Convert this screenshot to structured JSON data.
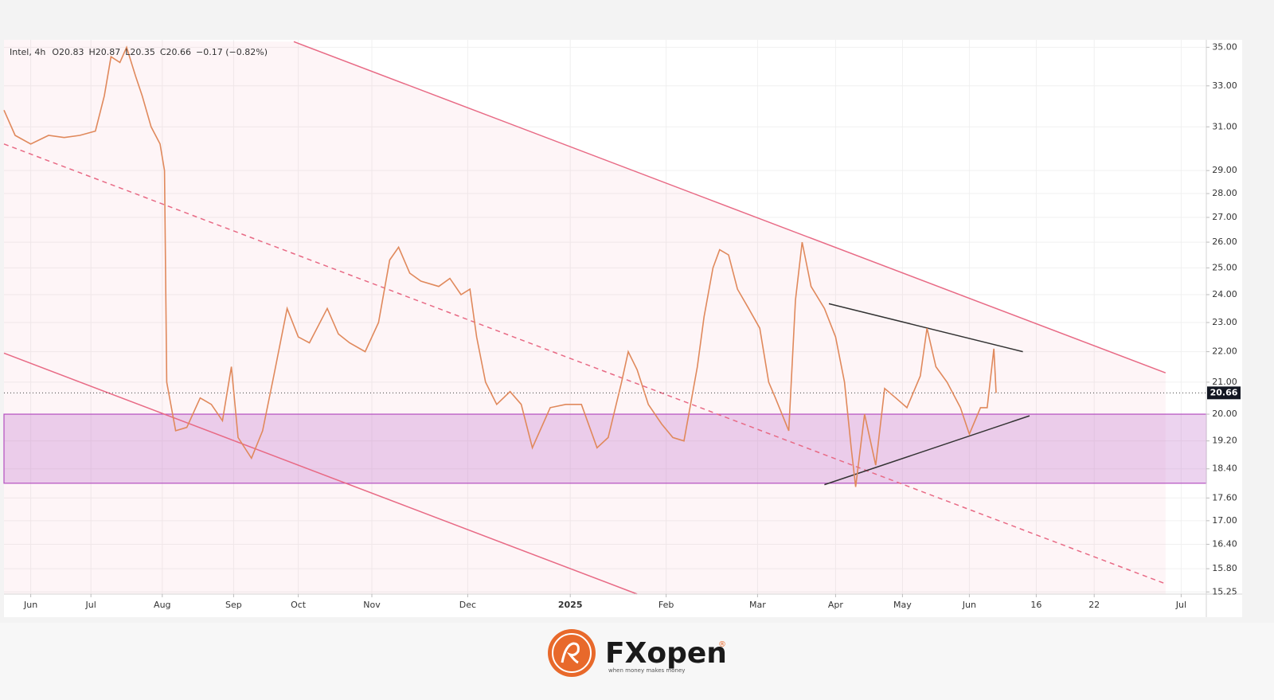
{
  "chart_data": {
    "type": "line",
    "symbol": "Intel, 4h",
    "legend_items": [
      "O20.83",
      "H20.87",
      "L20.35",
      "C20.66",
      "−0.17 (−0.82%)"
    ],
    "log_scale": true,
    "grid": true,
    "xlim": [
      0,
      540
    ],
    "xticks": [
      {
        "value": 12,
        "label": "Jun"
      },
      {
        "value": 39,
        "label": "Jul"
      },
      {
        "value": 71,
        "label": "Aug"
      },
      {
        "value": 103,
        "label": "Sep"
      },
      {
        "value": 132,
        "label": "Oct"
      },
      {
        "value": 165,
        "label": "Nov"
      },
      {
        "value": 208,
        "label": "Dec"
      },
      {
        "value": 254,
        "label": "2025"
      },
      {
        "value": 297,
        "label": "Feb"
      },
      {
        "value": 338,
        "label": "Mar"
      },
      {
        "value": 373,
        "label": "Apr"
      },
      {
        "value": 403,
        "label": "May"
      },
      {
        "value": 433,
        "label": "Jun"
      },
      {
        "value": 463,
        "label": "16"
      },
      {
        "value": 489,
        "label": "22"
      },
      {
        "value": 528,
        "label": "Jul"
      }
    ],
    "ylim": [
      15.2,
      35.4
    ],
    "yticks": [
      {
        "value": 35,
        "label": "35.00"
      },
      {
        "value": 33,
        "label": "33.00"
      },
      {
        "value": 31,
        "label": "31.00"
      },
      {
        "value": 29,
        "label": "29.00"
      },
      {
        "value": 28,
        "label": "28.00"
      },
      {
        "value": 27,
        "label": "27.00"
      },
      {
        "value": 26,
        "label": "26.00"
      },
      {
        "value": 25,
        "label": "25.00"
      },
      {
        "value": 24,
        "label": "24.00"
      },
      {
        "value": 23,
        "label": "23.00"
      },
      {
        "value": 22,
        "label": "22.00"
      },
      {
        "value": 21,
        "label": "21.00"
      },
      {
        "value": 20,
        "label": "20.00"
      },
      {
        "value": 19.2,
        "label": "19.20"
      },
      {
        "value": 18.4,
        "label": "18.40"
      },
      {
        "value": 17.6,
        "label": "17.60"
      },
      {
        "value": 17,
        "label": "17.00"
      },
      {
        "value": 16.4,
        "label": "16.40"
      },
      {
        "value": 15.8,
        "label": "15.80"
      },
      {
        "value": 15.25,
        "label": "15.25"
      }
    ],
    "series": [
      {
        "name": "Intel",
        "color": "#e0895c",
        "x": [
          0,
          5,
          12,
          20,
          27,
          34,
          41,
          45,
          48,
          52,
          55,
          59,
          62,
          66,
          70,
          72,
          73,
          77,
          82,
          88,
          93,
          98,
          102,
          105,
          111,
          116,
          121,
          127,
          132,
          137,
          145,
          150,
          155,
          162,
          168,
          173,
          177,
          182,
          187,
          195,
          200,
          205,
          209,
          212,
          216,
          221,
          227,
          232,
          237,
          245,
          252,
          259,
          266,
          271,
          277,
          280,
          284,
          289,
          295,
          300,
          305,
          311,
          314,
          318,
          321,
          325,
          329,
          334,
          339,
          343,
          346,
          352,
          355,
          358,
          362,
          368,
          373,
          377,
          380,
          382,
          386,
          391,
          395,
          400,
          405,
          411,
          414,
          418,
          423,
          429,
          433,
          438,
          441,
          444,
          445
        ],
        "values": [
          31.8,
          30.6,
          30.2,
          30.6,
          30.5,
          30.6,
          30.8,
          32.5,
          34.5,
          34.2,
          35.0,
          33.5,
          32.5,
          31.0,
          30.2,
          29.0,
          21.0,
          19.5,
          19.6,
          20.5,
          20.3,
          19.8,
          21.5,
          19.3,
          18.7,
          19.5,
          21.2,
          23.5,
          22.5,
          22.3,
          23.5,
          22.6,
          22.3,
          22.0,
          23.0,
          25.3,
          25.8,
          24.8,
          24.5,
          24.3,
          24.6,
          24.0,
          24.2,
          22.5,
          21.0,
          20.3,
          20.7,
          20.3,
          19.0,
          20.2,
          20.3,
          20.3,
          19.0,
          19.3,
          21.0,
          22.0,
          21.4,
          20.3,
          19.7,
          19.3,
          19.2,
          21.5,
          23.2,
          25.0,
          25.7,
          25.5,
          24.2,
          23.5,
          22.8,
          21.0,
          20.5,
          19.5,
          23.8,
          26.0,
          24.3,
          23.5,
          22.5,
          21.0,
          19.0,
          17.9,
          20.0,
          18.5,
          20.8,
          20.5,
          20.2,
          21.2,
          22.8,
          21.5,
          21.0,
          20.2,
          19.4,
          20.2,
          20.2,
          22.1,
          20.66
        ]
      }
    ],
    "last_price": {
      "value": 20.66,
      "label": "20.66"
    },
    "zone": [
      18.0,
      20.0
    ],
    "trendlines": [
      {
        "x": [
          130,
          521
        ],
        "y": [
          35.3,
          21.3
        ],
        "color": "#e86a85",
        "dash": false
      },
      {
        "x": [
          0,
          521
        ],
        "y": [
          30.2,
          15.44
        ],
        "color": "#e86a85",
        "dash": true
      },
      {
        "x": [
          0,
          284
        ],
        "y": [
          21.95,
          15.2
        ],
        "color": "#e86a85",
        "dash": false
      },
      {
        "x": [
          370,
          457
        ],
        "y": [
          23.67,
          22.0
        ],
        "color": "#333333",
        "dash": false
      },
      {
        "x": [
          368,
          460
        ],
        "y": [
          17.96,
          19.95
        ],
        "color": "#333333",
        "dash": false
      }
    ]
  },
  "footer": {
    "brand": "FXopen",
    "registered": "®",
    "tagline": "when money makes money"
  }
}
